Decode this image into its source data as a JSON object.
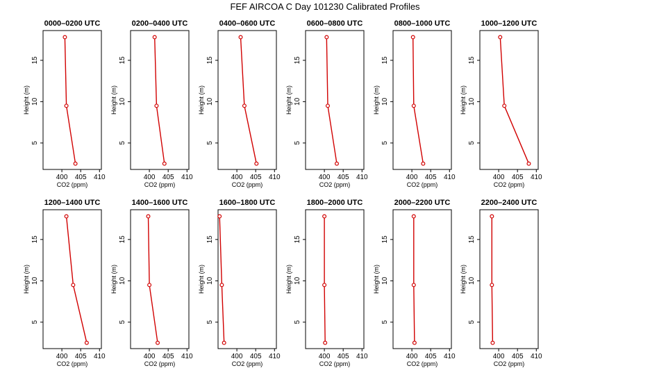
{
  "title": "FEF AIRCOA C  Day 101230  Calibrated Profiles",
  "colors": {
    "profile": "#d10000",
    "frame": "#000000"
  },
  "chart_data": {
    "type": "line",
    "title": "FEF AIRCOA C  Day 101230  Calibrated Profiles",
    "xlabel": "CO2 (ppm)",
    "ylabel": "Height (m)",
    "xlim": [
      395,
      410.5
    ],
    "ylim": [
      1.8,
      18.6
    ],
    "xticks": [
      400,
      405,
      410
    ],
    "yticks": [
      5,
      10,
      15
    ],
    "marker": "open-circle",
    "panels": [
      {
        "title": "0000–0200 UTC",
        "points": [
          {
            "x": 400.8,
            "y": 17.8
          },
          {
            "x": 401.2,
            "y": 9.5
          },
          {
            "x": 403.6,
            "y": 2.5
          }
        ]
      },
      {
        "title": "0200–0400 UTC",
        "points": [
          {
            "x": 401.4,
            "y": 17.8
          },
          {
            "x": 401.9,
            "y": 9.5
          },
          {
            "x": 404.0,
            "y": 2.5
          }
        ]
      },
      {
        "title": "0400–0600 UTC",
        "points": [
          {
            "x": 401.0,
            "y": 17.8
          },
          {
            "x": 402.0,
            "y": 9.5
          },
          {
            "x": 405.2,
            "y": 2.5
          }
        ]
      },
      {
        "title": "0600–0800 UTC",
        "points": [
          {
            "x": 400.6,
            "y": 17.8
          },
          {
            "x": 400.9,
            "y": 9.5
          },
          {
            "x": 403.3,
            "y": 2.5
          }
        ]
      },
      {
        "title": "0800–1000 UTC",
        "points": [
          {
            "x": 400.3,
            "y": 17.8
          },
          {
            "x": 400.5,
            "y": 9.5
          },
          {
            "x": 403.0,
            "y": 2.5
          }
        ]
      },
      {
        "title": "1000–1200 UTC",
        "points": [
          {
            "x": 400.4,
            "y": 17.8
          },
          {
            "x": 401.5,
            "y": 9.5
          },
          {
            "x": 408.0,
            "y": 2.5
          }
        ]
      },
      {
        "title": "1200–1400 UTC",
        "points": [
          {
            "x": 401.2,
            "y": 17.8
          },
          {
            "x": 403.0,
            "y": 9.5
          },
          {
            "x": 406.6,
            "y": 2.5
          }
        ]
      },
      {
        "title": "1400–1600 UTC",
        "points": [
          {
            "x": 399.7,
            "y": 17.8
          },
          {
            "x": 400.0,
            "y": 9.5
          },
          {
            "x": 402.2,
            "y": 2.5
          }
        ]
      },
      {
        "title": "1600–1800 UTC",
        "points": [
          {
            "x": 395.4,
            "y": 17.8
          },
          {
            "x": 396.0,
            "y": 9.5
          },
          {
            "x": 396.6,
            "y": 2.5
          }
        ]
      },
      {
        "title": "1800–2000 UTC",
        "points": [
          {
            "x": 400.0,
            "y": 17.8
          },
          {
            "x": 400.0,
            "y": 9.5
          },
          {
            "x": 400.2,
            "y": 2.5
          }
        ]
      },
      {
        "title": "2000–2200 UTC",
        "points": [
          {
            "x": 400.5,
            "y": 17.8
          },
          {
            "x": 400.5,
            "y": 9.5
          },
          {
            "x": 400.7,
            "y": 2.5
          }
        ]
      },
      {
        "title": "2200–2400 UTC",
        "points": [
          {
            "x": 398.2,
            "y": 17.8
          },
          {
            "x": 398.2,
            "y": 9.5
          },
          {
            "x": 398.4,
            "y": 2.5
          }
        ]
      }
    ]
  }
}
